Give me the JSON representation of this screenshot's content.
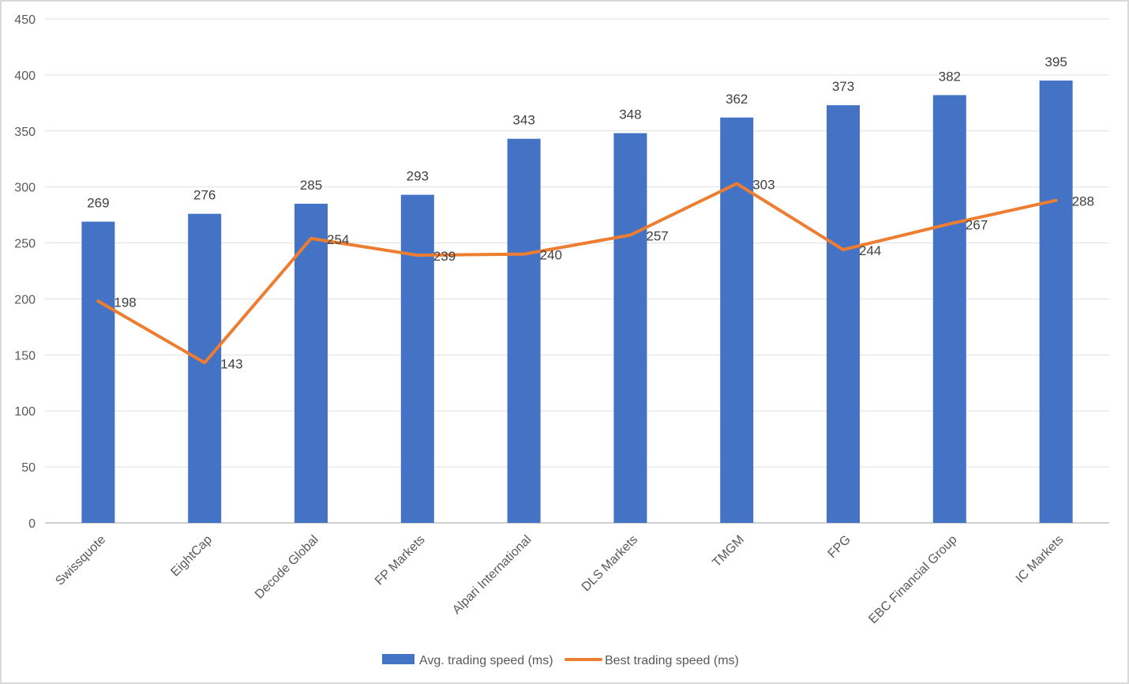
{
  "chart_data": {
    "type": "bar+line",
    "categories": [
      "Swissquote",
      "EightCap",
      "Decode Global",
      "FP Markets",
      "Alpari International",
      "DLS Markets",
      "TMGM",
      "FPG",
      "EBC Financial Group",
      "IC Markets"
    ],
    "series": [
      {
        "name": "Avg. trading speed (ms)",
        "type": "bar",
        "color": "#4472C4",
        "values": [
          269,
          276,
          285,
          293,
          343,
          348,
          362,
          373,
          382,
          395
        ]
      },
      {
        "name": "Best trading speed (ms)",
        "type": "line",
        "color": "#ED7D31",
        "values": [
          198,
          143,
          254,
          239,
          240,
          257,
          303,
          244,
          267,
          288
        ]
      }
    ],
    "title": "",
    "xlabel": "",
    "ylabel": "",
    "ylim": [
      0,
      450
    ],
    "yticks": [
      0,
      50,
      100,
      150,
      200,
      250,
      300,
      350,
      400,
      450
    ],
    "grid": true,
    "legend": "bottom"
  }
}
